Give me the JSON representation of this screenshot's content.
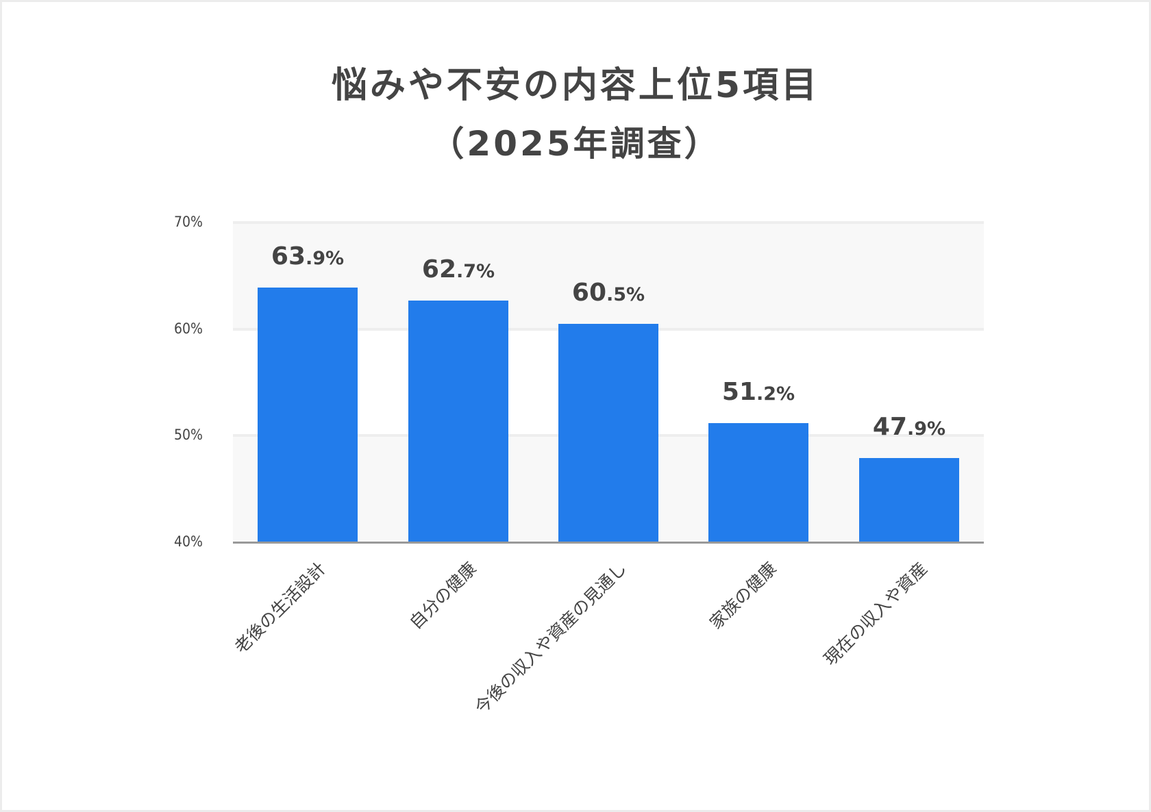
{
  "title": {
    "line1": "悩みや不安の内容上位5項目",
    "line2": "（2025年調査）"
  },
  "colors": {
    "bar": "#227ceb",
    "text": "#444444",
    "band": "#f8f8f8",
    "gridline": "#eeeeee",
    "baseline": "#999999"
  },
  "y_axis": {
    "ticks": [
      "70%",
      "60%",
      "50%",
      "40%"
    ]
  },
  "bars": [
    {
      "label": "老後の生活設計",
      "value": 63.9,
      "int": "63",
      "dec": ".9%"
    },
    {
      "label": "自分の健康",
      "value": 62.7,
      "int": "62",
      "dec": ".7%"
    },
    {
      "label": "今後の収入や資産の見通し",
      "value": 60.5,
      "int": "60",
      "dec": ".5%"
    },
    {
      "label": "家族の健康",
      "value": 51.2,
      "int": "51",
      "dec": ".2%"
    },
    {
      "label": "現在の収入や資産",
      "value": 47.9,
      "int": "47",
      "dec": ".9%"
    }
  ],
  "chart_data": {
    "type": "bar",
    "title": "悩みや不安の内容上位5項目（2025年調査）",
    "categories": [
      "老後の生活設計",
      "自分の健康",
      "今後の収入や資産の見通し",
      "家族の健康",
      "現在の収入や資産"
    ],
    "values": [
      63.9,
      62.7,
      60.5,
      51.2,
      47.9
    ],
    "data_labels": [
      "63.9%",
      "62.7%",
      "60.5%",
      "51.2%",
      "47.9%"
    ],
    "xlabel": "",
    "ylabel": "",
    "ylim": [
      40,
      70
    ],
    "yticks": [
      40,
      50,
      60,
      70
    ],
    "ytick_labels": [
      "40%",
      "50%",
      "60%",
      "70%"
    ],
    "grid": true,
    "alternating_bands": true,
    "legend": null
  }
}
